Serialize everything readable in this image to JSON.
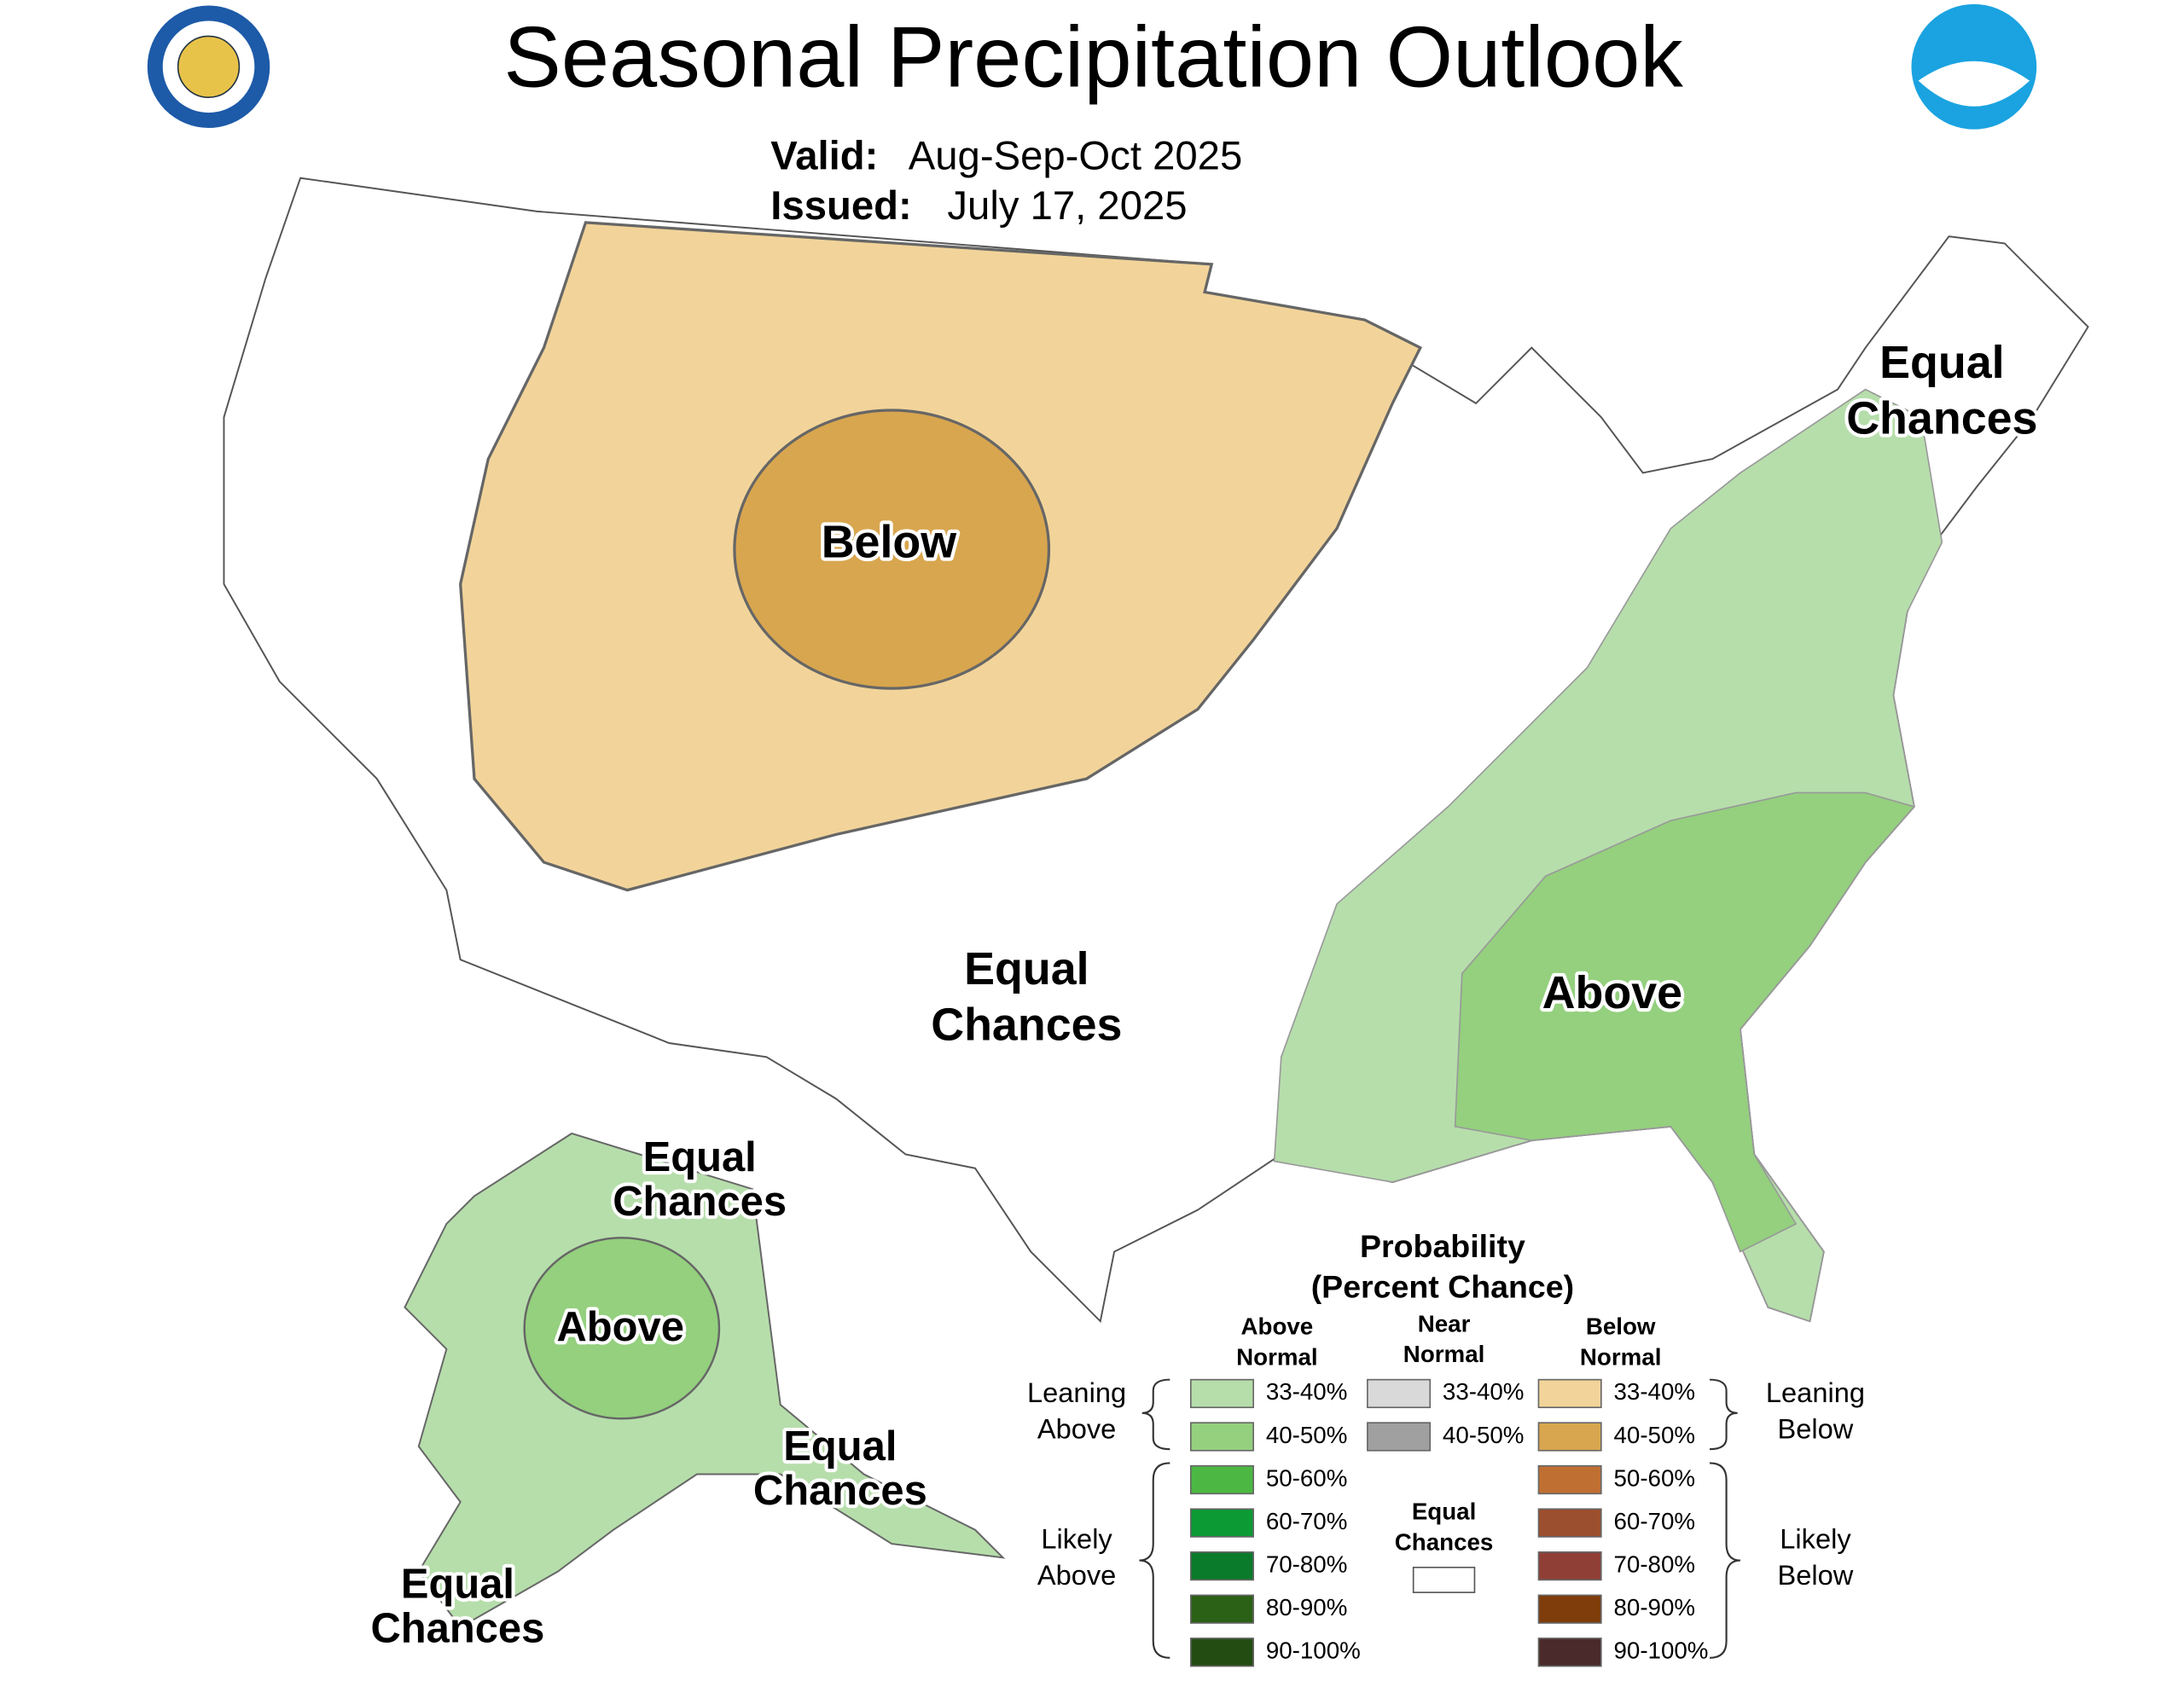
{
  "header": {
    "title": "Seasonal Precipitation Outlook",
    "valid_label": "Valid:",
    "valid": "Aug-Sep-Oct 2025",
    "issued_label": "Issued:",
    "issued": "July 17, 2025"
  },
  "map_labels": {
    "conus_below": "Below",
    "conus_equal": [
      "Equal",
      "Chances"
    ],
    "northeast_equal": [
      "Equal",
      "Chances"
    ],
    "southeast_above": "Above",
    "alaska_above": "Above",
    "alaska_north_equal": [
      "Equal",
      "Chances"
    ],
    "alaska_southeast_equal": [
      "Equal",
      "Chances"
    ],
    "alaska_southwest_equal": [
      "Equal",
      "Chances"
    ]
  },
  "legend": {
    "title": [
      "Probability",
      "(Percent Chance)"
    ],
    "columns": [
      {
        "heading": [
          "Above",
          "Normal"
        ],
        "items": [
          {
            "label": "33-40%",
            "color": "#b6deab"
          },
          {
            "label": "40-50%",
            "color": "#94d07e"
          },
          {
            "label": "50-60%",
            "color": "#4cb843"
          },
          {
            "label": "60-70%",
            "color": "#0c9a34"
          },
          {
            "label": "70-80%",
            "color": "#0a7a2b"
          },
          {
            "label": "80-90%",
            "color": "#2b6116"
          },
          {
            "label": "90-100%",
            "color": "#234c12"
          }
        ]
      },
      {
        "heading": [
          "Near",
          "Normal"
        ],
        "items": [
          {
            "label": "33-40%",
            "color": "#d9d9d9"
          },
          {
            "label": "40-50%",
            "color": "#a0a0a0"
          }
        ]
      },
      {
        "heading": [
          "Below",
          "Normal"
        ],
        "items": [
          {
            "label": "33-40%",
            "color": "#f2d49a"
          },
          {
            "label": "40-50%",
            "color": "#d8a64f"
          },
          {
            "label": "50-60%",
            "color": "#c06f33"
          },
          {
            "label": "60-70%",
            "color": "#9c4f2e"
          },
          {
            "label": "70-80%",
            "color": "#8f3f36"
          },
          {
            "label": "80-90%",
            "color": "#7e3d0b"
          },
          {
            "label": "90-100%",
            "color": "#4a2a2a"
          }
        ]
      }
    ],
    "equal_chances": {
      "label": [
        "Equal",
        "Chances"
      ],
      "color": "#ffffff"
    },
    "brackets": {
      "leaning_above": [
        "Leaning",
        "Above"
      ],
      "likely_above": [
        "Likely",
        "Above"
      ],
      "leaning_below": [
        "Leaning",
        "Below"
      ],
      "likely_below": [
        "Likely",
        "Below"
      ]
    }
  }
}
